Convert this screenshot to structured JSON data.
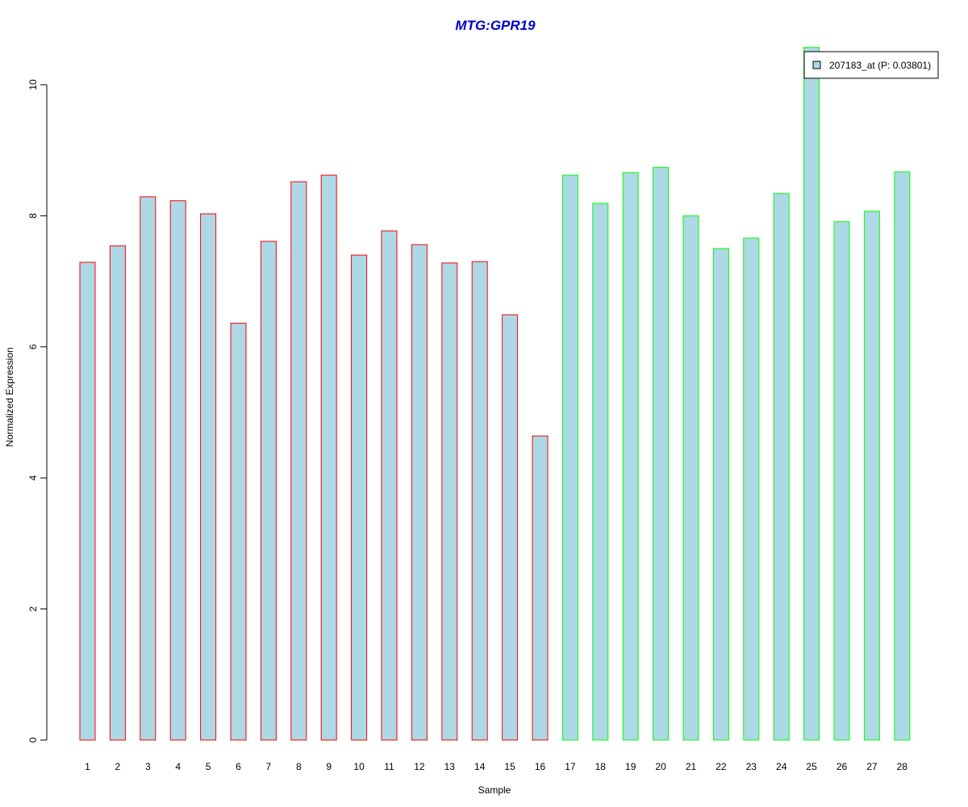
{
  "chart_data": {
    "type": "bar",
    "title": "MTG:GPR19",
    "title_color": "#0000CC",
    "xlabel": "Sample",
    "ylabel": "Normalized Expression",
    "ylim": [
      0,
      10.5
    ],
    "yticks": [
      "0",
      "2",
      "4",
      "6",
      "8",
      "10"
    ],
    "categories": [
      "1",
      "2",
      "3",
      "4",
      "5",
      "6",
      "7",
      "8",
      "9",
      "10",
      "11",
      "12",
      "13",
      "14",
      "15",
      "16",
      "17",
      "18",
      "19",
      "20",
      "21",
      "22",
      "23",
      "24",
      "25",
      "26",
      "27",
      "28"
    ],
    "values": [
      7.29,
      7.54,
      8.29,
      8.23,
      8.03,
      6.36,
      7.61,
      8.52,
      8.62,
      7.4,
      7.77,
      7.56,
      7.28,
      7.3,
      6.49,
      4.64,
      8.62,
      8.19,
      8.66,
      8.74,
      8.0,
      7.5,
      7.66,
      8.34,
      10.57,
      7.91,
      8.07,
      8.67
    ],
    "groups": [
      1,
      1,
      1,
      1,
      1,
      1,
      1,
      1,
      1,
      1,
      1,
      1,
      1,
      1,
      1,
      1,
      2,
      2,
      2,
      2,
      2,
      2,
      2,
      2,
      2,
      2,
      2,
      2
    ],
    "fill_color": "#ADD8E6",
    "group_colors": {
      "1": "#FF0000",
      "2": "#00FF00"
    },
    "legend": {
      "label": "207183_at (P: 0.03801)",
      "position": "top-right"
    },
    "grid": false
  }
}
